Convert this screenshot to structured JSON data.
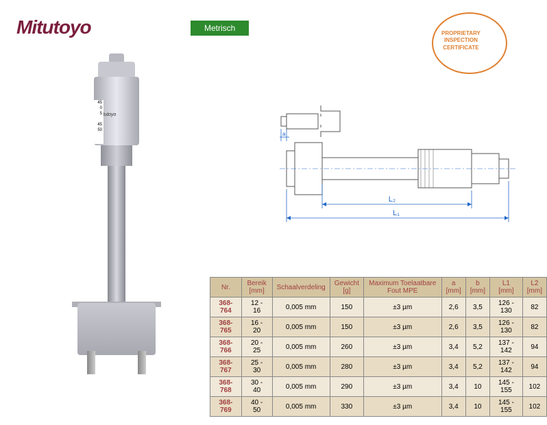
{
  "logo": "Mitutoyo",
  "tag": "Metrisch",
  "cert": {
    "l1": "PROPRIETARY",
    "l2": "INSPECTION",
    "l3": "CERTIFICATE"
  },
  "barrel_label": "Mitutoyo",
  "scale_marks": [
    "45",
    "0",
    "5",
    "45",
    "50"
  ],
  "diagram": {
    "small_labels": {
      "a": "a",
      "b": "b"
    },
    "dims": {
      "l1": "L₁",
      "l2": "L₂"
    }
  },
  "table": {
    "headers": [
      {
        "t": "Nr.",
        "u": ""
      },
      {
        "t": "Bereik",
        "u": "[mm]"
      },
      {
        "t": "Schaalverdeling",
        "u": ""
      },
      {
        "t": "Gewicht",
        "u": "[g]"
      },
      {
        "t": "Maximum Toelaatbare Fout MPE",
        "u": ""
      },
      {
        "t": "a",
        "u": "[mm]"
      },
      {
        "t": "b",
        "u": "[mm]"
      },
      {
        "t": "L1",
        "u": "[mm]"
      },
      {
        "t": "L2",
        "u": "[mm]"
      }
    ],
    "rows": [
      [
        "368-764",
        "12 - 16",
        "0,005 mm",
        "150",
        "±3 µm",
        "2,6",
        "3,5",
        "126 - 130",
        "82"
      ],
      [
        "368-765",
        "16 - 20",
        "0,005 mm",
        "150",
        "±3 µm",
        "2,6",
        "3,5",
        "126 - 130",
        "82"
      ],
      [
        "368-766",
        "20 - 25",
        "0,005 mm",
        "260",
        "±3 µm",
        "3,4",
        "5,2",
        "137 - 142",
        "94"
      ],
      [
        "368-767",
        "25 - 30",
        "0,005 mm",
        "280",
        "±3 µm",
        "3,4",
        "5,2",
        "137 - 142",
        "94"
      ],
      [
        "368-768",
        "30 - 40",
        "0,005 mm",
        "290",
        "±3 µm",
        "3,4",
        "10",
        "145 - 155",
        "102"
      ],
      [
        "368-769",
        "40 - 50",
        "0,005 mm",
        "330",
        "±3 µm",
        "3,4",
        "10",
        "145 - 155",
        "102"
      ]
    ]
  }
}
